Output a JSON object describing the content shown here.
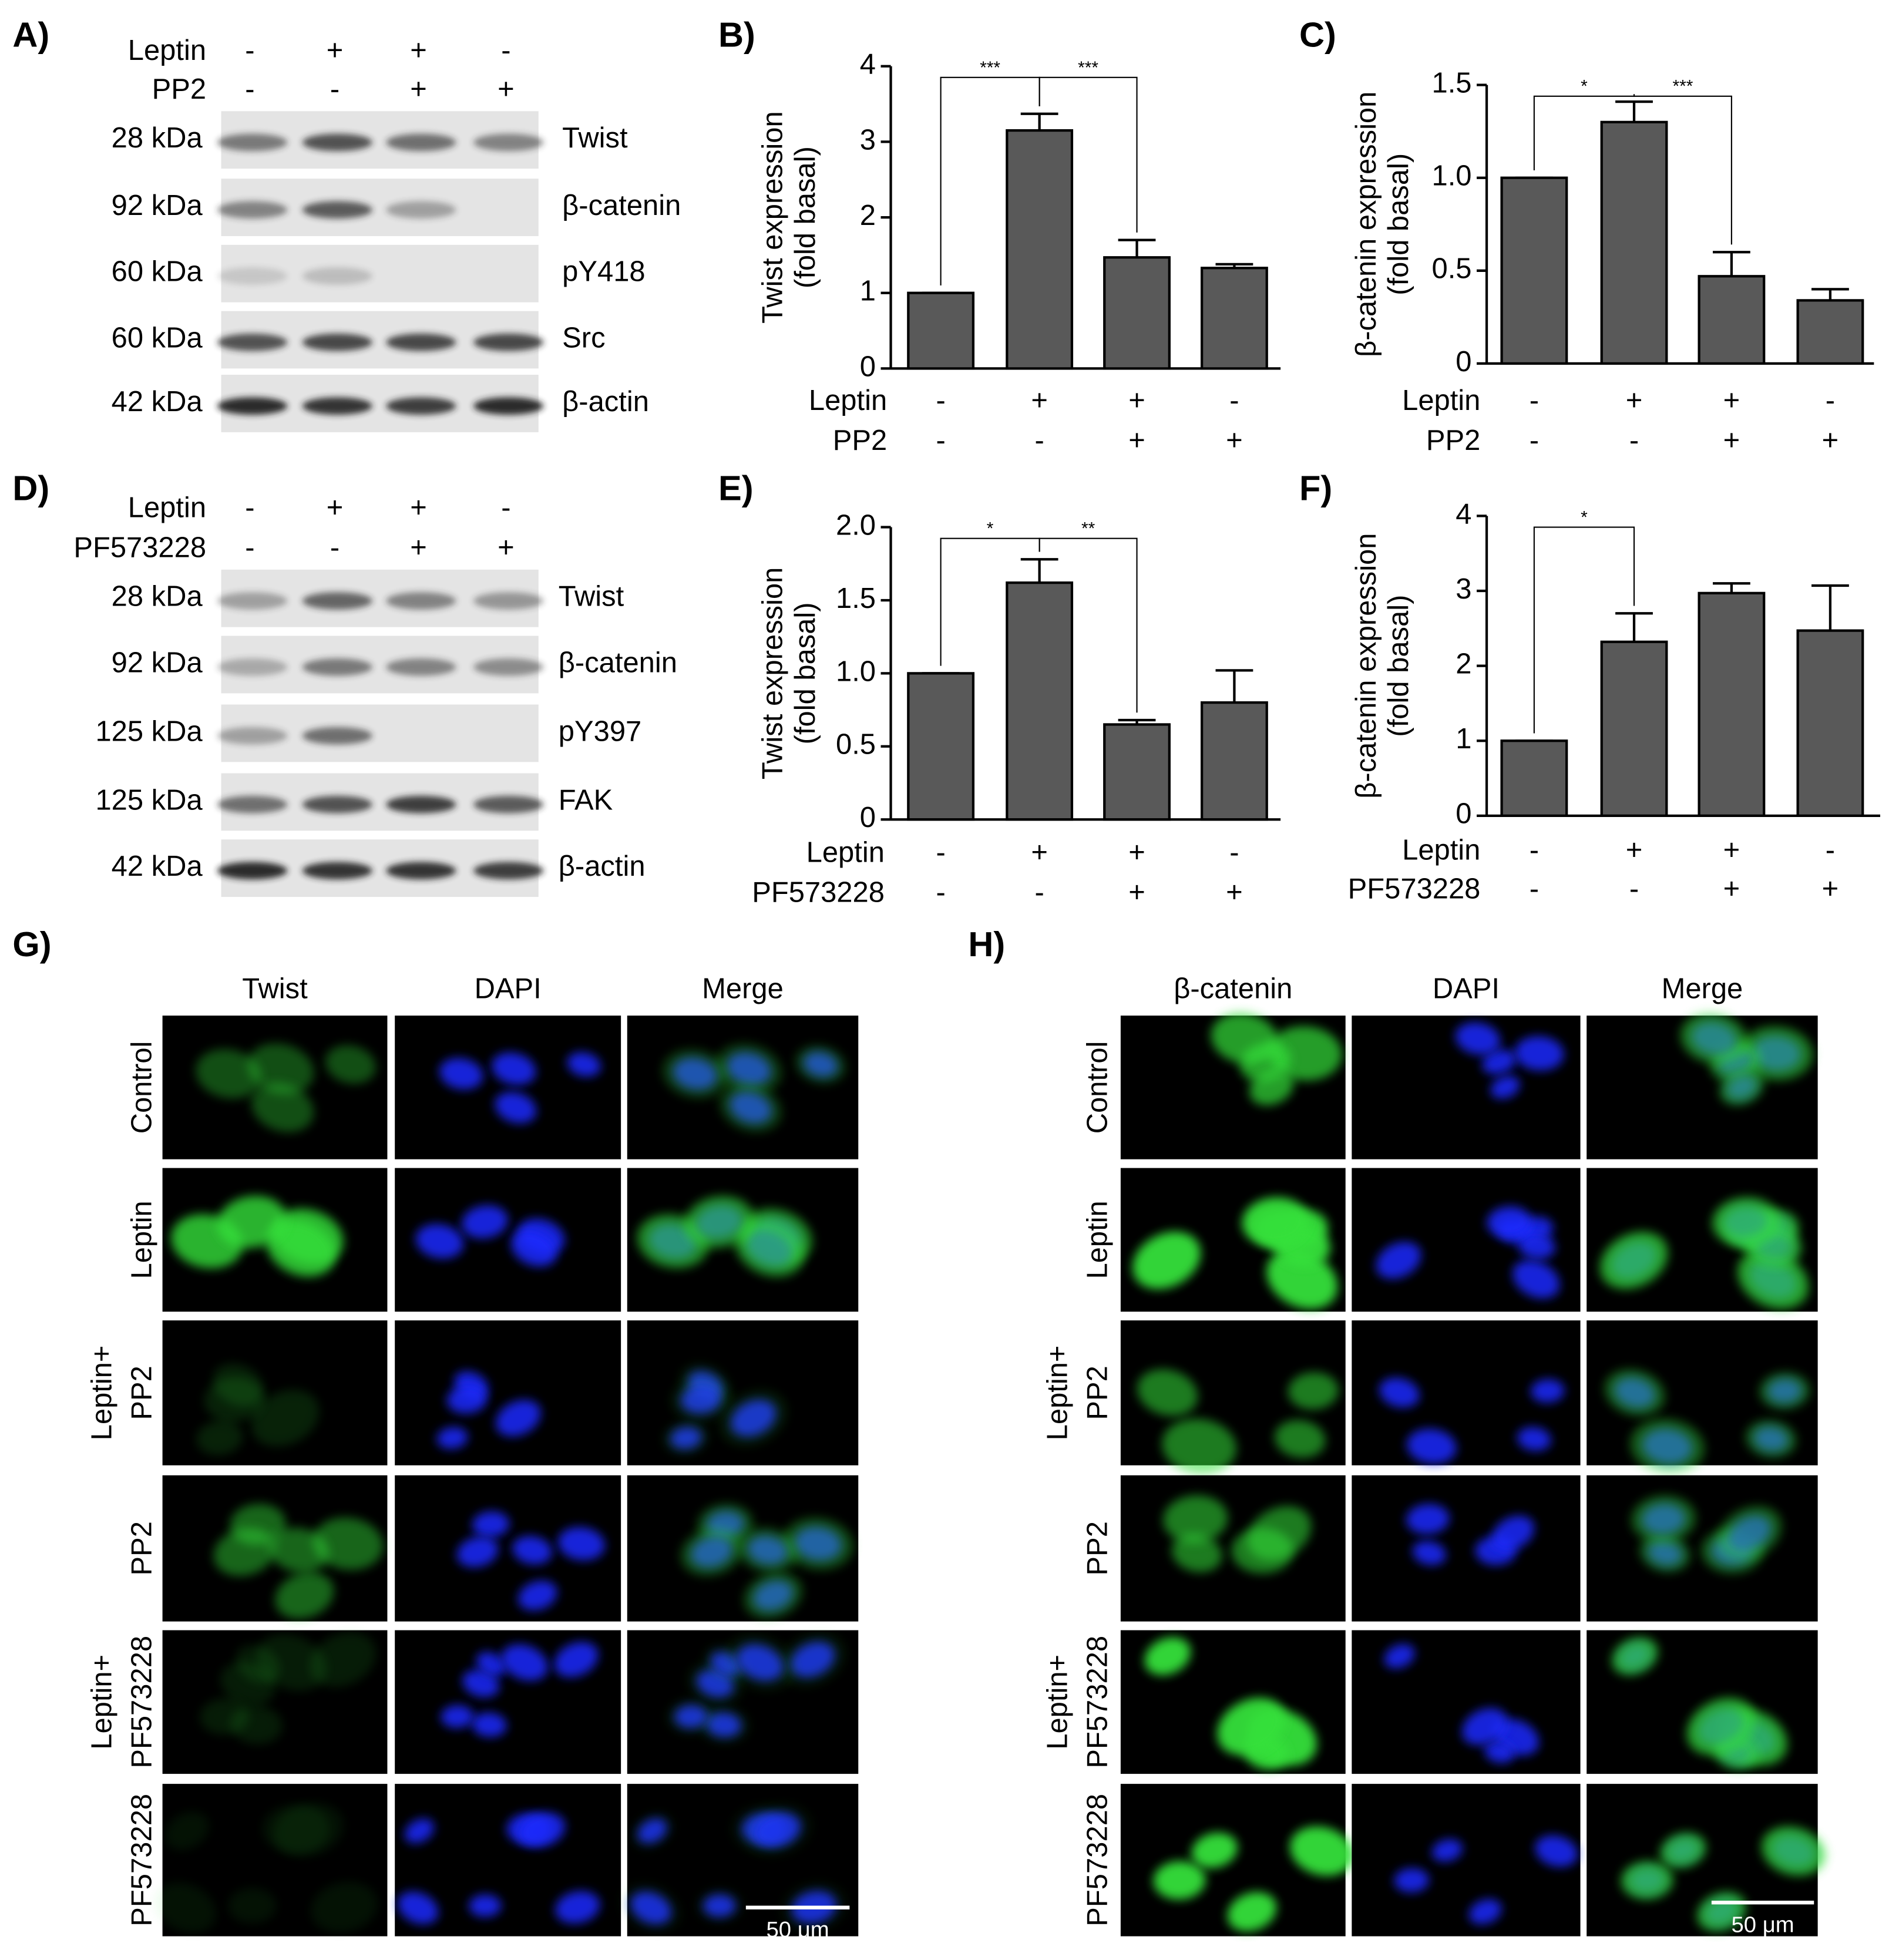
{
  "blots": [
    {
      "letter": "A)",
      "treatments": [
        {
          "name": "Leptin",
          "values": [
            "-",
            "+",
            "+",
            "-"
          ]
        },
        {
          "name": "PP2",
          "values": [
            "-",
            "-",
            "+",
            "+"
          ]
        }
      ],
      "bands": [
        {
          "size": "28 kDa",
          "label": "Twist"
        },
        {
          "size": "92 kDa",
          "label": "β-catenin"
        },
        {
          "size": "60 kDa",
          "label": "pY418"
        },
        {
          "size": "60 kDa",
          "label": "Src"
        },
        {
          "size": "42 kDa",
          "label": "β-actin"
        }
      ]
    },
    {
      "letter": "D)",
      "treatments": [
        {
          "name": "Leptin",
          "values": [
            "-",
            "+",
            "+",
            "-"
          ]
        },
        {
          "name": "PF573228",
          "values": [
            "-",
            "-",
            "+",
            "+"
          ]
        }
      ],
      "bands": [
        {
          "size": "28 kDa",
          "label": "Twist"
        },
        {
          "size": "92 kDa",
          "label": "β-catenin"
        },
        {
          "size": "125 kDa",
          "label": "pY397"
        },
        {
          "size": "125 kDa",
          "label": "FAK"
        },
        {
          "size": "42 kDa",
          "label": "β-actin"
        }
      ]
    }
  ],
  "chart_data": [
    {
      "type": "bar",
      "letter": "B)",
      "ylabel": [
        "Twist expression",
        "(fold basal)"
      ],
      "color": "#595959",
      "values": [
        1,
        3.15,
        1.47,
        1.33
      ],
      "errors": [
        0,
        0.22,
        0.23,
        0.05
      ],
      "ylim": [
        0,
        4
      ],
      "yticks": [
        0,
        1,
        2,
        3,
        4
      ],
      "conditions": [
        {
          "name": "Leptin",
          "values": [
            "-",
            "+",
            "+",
            "-"
          ]
        },
        {
          "name": "PP2",
          "values": [
            "-",
            "-",
            "+",
            "+"
          ]
        }
      ],
      "annotations": [
        {
          "text": "***",
          "between": [
            0,
            1
          ]
        },
        {
          "text": "***",
          "between": [
            1,
            2
          ]
        }
      ]
    },
    {
      "type": "bar",
      "letter": "C)",
      "ylabel": [
        "β-catenin expression",
        "(fold basal)"
      ],
      "color": "#595959",
      "values": [
        1,
        1.3,
        0.47,
        0.34
      ],
      "errors": [
        0,
        0.11,
        0.13,
        0.06
      ],
      "ylim": [
        0,
        1.5
      ],
      "yticks": [
        0,
        0.5,
        {
          "value": 1,
          "label": "1.0"
        },
        1.5
      ],
      "conditions": [
        {
          "name": "Leptin",
          "values": [
            "-",
            "+",
            "+",
            "-"
          ]
        },
        {
          "name": "PP2",
          "values": [
            "-",
            "-",
            "+",
            "+"
          ]
        }
      ],
      "annotations": [
        {
          "text": "*",
          "between": [
            0,
            1
          ]
        },
        {
          "text": "***",
          "between": [
            1,
            2
          ]
        }
      ]
    },
    {
      "type": "bar",
      "letter": "E)",
      "ylabel": [
        "Twist expression",
        "(fold basal)"
      ],
      "color": "#595959",
      "values": [
        1,
        1.62,
        0.65,
        0.8
      ],
      "errors": [
        0,
        0.16,
        0.03,
        0.22
      ],
      "ylim": [
        0,
        2
      ],
      "yticks": [
        0,
        0.5,
        {
          "value": 1,
          "label": "1.0"
        },
        1.5,
        {
          "value": 2,
          "label": "2.0"
        }
      ],
      "conditions": [
        {
          "name": "Leptin",
          "values": [
            "-",
            "+",
            "+",
            "-"
          ]
        },
        {
          "name": "PF573228",
          "values": [
            "-",
            "-",
            "+",
            "+"
          ]
        }
      ],
      "annotations": [
        {
          "text": "*",
          "between": [
            0,
            1
          ]
        },
        {
          "text": "**",
          "between": [
            1,
            2
          ]
        }
      ]
    },
    {
      "type": "bar",
      "letter": "F)",
      "ylabel": [
        "β-catenin expression",
        "(fold basal)"
      ],
      "color": "#595959",
      "values": [
        1,
        2.32,
        2.97,
        2.47
      ],
      "errors": [
        0,
        0.38,
        0.13,
        0.6
      ],
      "ylim": [
        0,
        4
      ],
      "yticks": [
        0,
        1,
        2,
        3,
        4
      ],
      "conditions": [
        {
          "name": "Leptin",
          "values": [
            "-",
            "+",
            "+",
            "-"
          ]
        },
        {
          "name": "PF573228",
          "values": [
            "-",
            "-",
            "+",
            "+"
          ]
        }
      ],
      "annotations": [
        {
          "text": "*",
          "between": [
            0,
            1
          ]
        }
      ]
    }
  ],
  "microscopy": [
    {
      "letter": "G)",
      "columns": [
        "Twist",
        "DAPI",
        "Merge"
      ],
      "rows": [
        [
          "Control"
        ],
        [
          "Leptin"
        ],
        [
          "Leptin+",
          "PP2"
        ],
        [
          "PP2"
        ],
        [
          "Leptin+",
          "PF573228"
        ],
        [
          "PF573228"
        ]
      ],
      "scale_bar": "50 μm"
    },
    {
      "letter": "H)",
      "columns": [
        "β-catenin",
        "DAPI",
        "Merge"
      ],
      "rows": [
        [
          "Control"
        ],
        [
          "Leptin"
        ],
        [
          "Leptin+",
          "PP2"
        ],
        [
          "PP2"
        ],
        [
          "Leptin+",
          "PF573228"
        ],
        [
          "PF573228"
        ]
      ],
      "scale_bar": "50 μm"
    }
  ]
}
